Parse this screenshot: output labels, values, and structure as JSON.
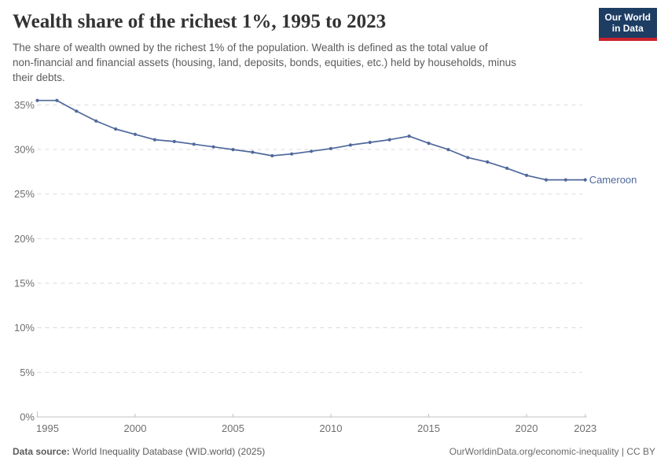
{
  "header": {
    "title": "Wealth share of the richest 1%, 1995 to 2023",
    "subtitle": "The share of wealth owned by the richest 1% of the population. Wealth is defined as the total value of\nnon-financial and financial assets (housing, land, deposits, bonds, equities, etc.) held by households, minus\ntheir debts.",
    "logo": {
      "line1": "Our World",
      "line2": "in Data",
      "bg_color": "#1d3d63",
      "accent_color": "#c8232c"
    }
  },
  "chart_data": {
    "type": "line",
    "title": "Wealth share of the richest 1%, 1995 to 2023",
    "xlabel": "",
    "ylabel": "",
    "xlim": [
      1995,
      2023
    ],
    "ylim": [
      0,
      36
    ],
    "grid": "horizontal-dashed",
    "legend_position": "end-of-line-label",
    "x_ticks": [
      1995,
      2000,
      2005,
      2010,
      2015,
      2020,
      2023
    ],
    "y_ticks": [
      0,
      5,
      10,
      15,
      20,
      25,
      30,
      35
    ],
    "y_tick_suffix": "%",
    "x": [
      1995,
      1996,
      1997,
      1998,
      1999,
      2000,
      2001,
      2002,
      2003,
      2004,
      2005,
      2006,
      2007,
      2008,
      2009,
      2010,
      2011,
      2012,
      2013,
      2014,
      2015,
      2016,
      2017,
      2018,
      2019,
      2020,
      2021,
      2022,
      2023
    ],
    "series": [
      {
        "name": "Cameroon",
        "color": "#4f689b",
        "values": [
          35.5,
          35.5,
          34.3,
          33.2,
          32.3,
          31.7,
          31.1,
          30.9,
          30.6,
          30.3,
          30.0,
          29.7,
          29.3,
          29.5,
          29.8,
          30.1,
          30.5,
          30.8,
          31.1,
          31.5,
          30.7,
          30.0,
          29.1,
          28.6,
          27.9,
          27.1,
          26.6,
          26.6,
          26.6
        ]
      }
    ],
    "axis_color": "#c2c2c2",
    "gridline_color": "#dadada"
  },
  "footer": {
    "datasource_label": "Data source:",
    "datasource_value": " World Inequality Database (WID.world) (2025)",
    "attribution": "OurWorldinData.org/economic-inequality | CC BY"
  }
}
